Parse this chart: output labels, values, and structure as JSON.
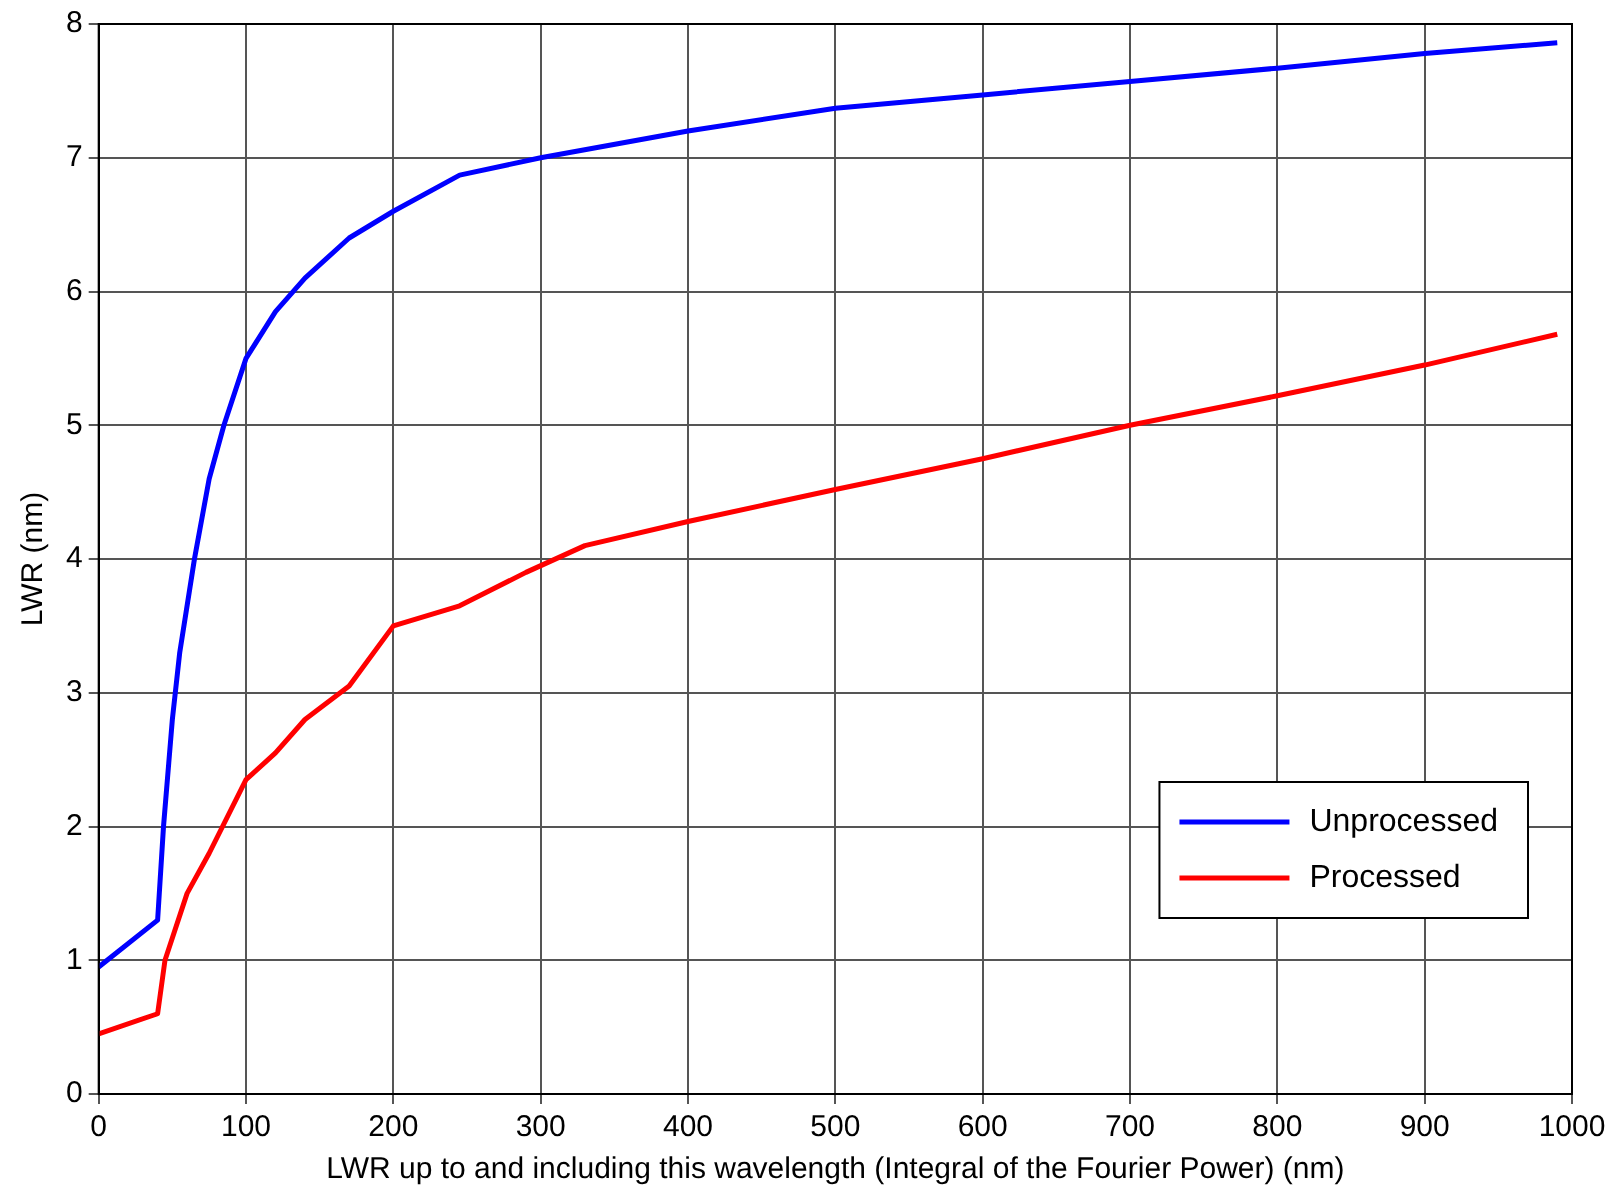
{
  "chart_data": {
    "type": "line",
    "xlabel": "LWR up to and including this wavelength (Integral of the Fourier Power) (nm)",
    "ylabel": "LWR (nm)",
    "xlim": [
      0,
      1000
    ],
    "xticks": [
      0,
      100,
      200,
      300,
      400,
      500,
      600,
      700,
      800,
      900,
      1000
    ],
    "ylim": [
      0,
      8
    ],
    "yticks": [
      0,
      1,
      2,
      3,
      4,
      5,
      6,
      7,
      8
    ],
    "grid": true,
    "legend": "bottom right",
    "marker": "none",
    "line_style": "solid",
    "series": [
      {
        "name": "Unprocessed",
        "color": "#0000ff",
        "x": [
          0,
          40,
          44,
          50,
          55,
          65,
          75,
          85,
          100,
          120,
          140,
          170,
          200,
          245,
          300,
          400,
          500,
          600,
          700,
          800,
          900,
          990
        ],
        "values": [
          0.95,
          1.3,
          2.0,
          2.8,
          3.3,
          4.0,
          4.6,
          5.0,
          5.5,
          5.85,
          6.1,
          6.4,
          6.6,
          6.87,
          7.0,
          7.2,
          7.37,
          7.47,
          7.57,
          7.67,
          7.78,
          7.86
        ]
      },
      {
        "name": "Processed",
        "color": "#ff0000",
        "x": [
          0,
          40,
          45,
          60,
          75,
          100,
          120,
          140,
          170,
          200,
          245,
          290,
          330,
          400,
          500,
          600,
          700,
          800,
          900,
          990
        ],
        "values": [
          0.45,
          0.6,
          1.0,
          1.5,
          1.8,
          2.35,
          2.55,
          2.8,
          3.05,
          3.5,
          3.65,
          3.9,
          4.1,
          4.28,
          4.52,
          4.75,
          5.0,
          5.22,
          5.45,
          5.68
        ]
      }
    ]
  }
}
